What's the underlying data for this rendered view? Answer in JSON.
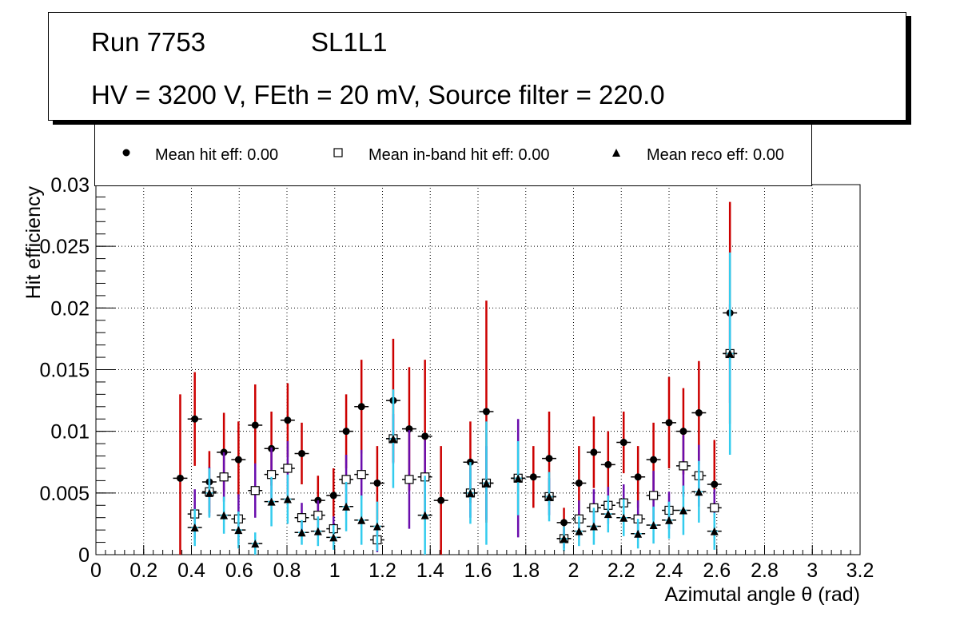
{
  "title": {
    "line1_run": "Run 7753",
    "line1_layer": "SL1L1",
    "line2": "HV = 3200 V, FEth = 20 mV, Source filter = 220.0"
  },
  "legend": {
    "hit": "Mean hit  eff: 0.00",
    "inband": "Mean in-band hit eff: 0.00",
    "reco": "Mean reco eff: 0.00"
  },
  "colors": {
    "hit_err": "#cc0000",
    "inband_err": "#6a0dad",
    "reco_err": "#33ccee"
  },
  "chart_data": {
    "type": "scatter",
    "xlabel": "Azimutal angle θ (rad)",
    "ylabel": "Hit efficiency",
    "xlim": [
      0,
      3.2
    ],
    "ylim": [
      0,
      0.03
    ],
    "x_ticks": [
      0,
      0.2,
      0.4,
      0.6,
      0.8,
      1,
      1.2,
      1.4,
      1.6,
      1.8,
      2,
      2.2,
      2.4,
      2.6,
      2.8,
      3,
      3.2
    ],
    "x_tick_labels": [
      "0",
      "0.2",
      "0.4",
      "0.6",
      "0.8",
      "1",
      "1.2",
      "1.4",
      "1.6",
      "1.8",
      "2",
      "2.2",
      "2.4",
      "2.6",
      "2.8",
      "3",
      "3.2"
    ],
    "y_ticks": [
      0,
      0.005,
      0.01,
      0.015,
      0.02,
      0.025,
      0.03
    ],
    "y_tick_labels": [
      "0",
      "0.005",
      "0.01",
      "0.015",
      "0.02",
      "0.025",
      "0.03"
    ],
    "grid": true,
    "x_halfwidth": 0.03,
    "series": [
      {
        "name": "Mean hit  eff: 0.00",
        "marker": "circle",
        "points": [
          [
            0.353,
            0.0062,
            0.0068
          ],
          [
            0.414,
            0.011,
            0.0038
          ],
          [
            0.475,
            0.0059,
            0.0025
          ],
          [
            0.536,
            0.0083,
            0.0032
          ],
          [
            0.597,
            0.0077,
            0.0031
          ],
          [
            0.667,
            0.0105,
            0.0033
          ],
          [
            0.735,
            0.0086,
            0.003
          ],
          [
            0.803,
            0.0109,
            0.003
          ],
          [
            0.862,
            0.0082,
            0.0025
          ],
          [
            0.93,
            0.0044,
            0.002
          ],
          [
            0.995,
            0.0048,
            0.0022
          ],
          [
            1.048,
            0.01,
            0.003
          ],
          [
            1.112,
            0.012,
            0.0038
          ],
          [
            1.178,
            0.0058,
            0.003
          ],
          [
            1.245,
            0.0125,
            0.005
          ],
          [
            1.312,
            0.0102,
            0.005
          ],
          [
            1.378,
            0.0096,
            0.0062
          ],
          [
            1.445,
            0.0044,
            0.0044
          ],
          [
            1.568,
            0.0075,
            0.0033
          ],
          [
            1.635,
            0.0116,
            0.009
          ],
          [
            1.768,
            0.0062,
            0.003
          ],
          [
            1.832,
            0.0063,
            0.0025
          ],
          [
            1.898,
            0.0078,
            0.0038
          ],
          [
            1.96,
            0.0026,
            0.0012
          ],
          [
            2.023,
            0.0058,
            0.003
          ],
          [
            2.085,
            0.0083,
            0.0029
          ],
          [
            2.145,
            0.0073,
            0.0027
          ],
          [
            2.21,
            0.0091,
            0.0025
          ],
          [
            2.27,
            0.0063,
            0.0025
          ],
          [
            2.335,
            0.0077,
            0.003
          ],
          [
            2.4,
            0.0107,
            0.0037
          ],
          [
            2.46,
            0.01,
            0.0035
          ],
          [
            2.525,
            0.0115,
            0.0042
          ],
          [
            2.59,
            0.0057,
            0.0036
          ],
          [
            2.655,
            0.0196,
            0.009
          ]
        ]
      },
      {
        "name": "Mean in-band hit eff: 0.00",
        "marker": "open-square",
        "points": [
          [
            0.414,
            0.0033,
            0.002
          ],
          [
            0.475,
            0.0051,
            0.002
          ],
          [
            0.536,
            0.0063,
            0.002
          ],
          [
            0.597,
            0.0029,
            0.002
          ],
          [
            0.667,
            0.0052,
            0.0022
          ],
          [
            0.735,
            0.0065,
            0.0022
          ],
          [
            0.803,
            0.007,
            0.0022
          ],
          [
            0.862,
            0.003,
            0.0012
          ],
          [
            0.93,
            0.0032,
            0.0012
          ],
          [
            0.995,
            0.0021,
            0.001
          ],
          [
            1.048,
            0.0061,
            0.002
          ],
          [
            1.112,
            0.0065,
            0.002
          ],
          [
            1.178,
            0.0012,
            0.001
          ],
          [
            1.245,
            0.0094,
            0.002
          ],
          [
            1.312,
            0.0061,
            0.004
          ],
          [
            1.378,
            0.0063,
            0.003
          ],
          [
            1.568,
            0.005,
            0.002
          ],
          [
            1.635,
            0.0058,
            0.003
          ],
          [
            1.768,
            0.0062,
            0.0048
          ],
          [
            1.898,
            0.0047,
            0.0015
          ],
          [
            1.96,
            0.0013,
            0.0008
          ],
          [
            2.023,
            0.0029,
            0.0015
          ],
          [
            2.085,
            0.0038,
            0.0015
          ],
          [
            2.145,
            0.004,
            0.0015
          ],
          [
            2.21,
            0.0042,
            0.0015
          ],
          [
            2.27,
            0.0029,
            0.0015
          ],
          [
            2.335,
            0.0048,
            0.002
          ],
          [
            2.4,
            0.0036,
            0.0015
          ],
          [
            2.46,
            0.0072,
            0.0025
          ],
          [
            2.525,
            0.0064,
            0.0025
          ],
          [
            2.59,
            0.0038,
            0.0015
          ],
          [
            2.655,
            0.0163,
            0.004
          ]
        ]
      },
      {
        "name": "Mean reco eff: 0.00",
        "marker": "triangle",
        "points": [
          [
            0.414,
            0.0022,
            0.0015
          ],
          [
            0.475,
            0.005,
            0.002
          ],
          [
            0.536,
            0.0032,
            0.0015
          ],
          [
            0.597,
            0.002,
            0.0015
          ],
          [
            0.667,
            0.0009,
            0.0009
          ],
          [
            0.735,
            0.0043,
            0.002
          ],
          [
            0.803,
            0.0045,
            0.002
          ],
          [
            0.862,
            0.0018,
            0.001
          ],
          [
            0.93,
            0.0019,
            0.0012
          ],
          [
            0.995,
            0.0014,
            0.001
          ],
          [
            1.048,
            0.0039,
            0.002
          ],
          [
            1.112,
            0.0028,
            0.002
          ],
          [
            1.178,
            0.0023,
            0.002
          ],
          [
            1.245,
            0.0094,
            0.004
          ],
          [
            1.378,
            0.0032,
            0.0032
          ],
          [
            1.568,
            0.005,
            0.0025
          ],
          [
            1.635,
            0.0058,
            0.005
          ],
          [
            1.768,
            0.0062,
            0.003
          ],
          [
            1.898,
            0.0047,
            0.002
          ],
          [
            1.96,
            0.0013,
            0.001
          ],
          [
            2.023,
            0.0019,
            0.0012
          ],
          [
            2.085,
            0.0023,
            0.0015
          ],
          [
            2.145,
            0.0033,
            0.0015
          ],
          [
            2.21,
            0.003,
            0.0015
          ],
          [
            2.27,
            0.0017,
            0.0012
          ],
          [
            2.335,
            0.0024,
            0.0015
          ],
          [
            2.4,
            0.0028,
            0.0015
          ],
          [
            2.46,
            0.0036,
            0.002
          ],
          [
            2.525,
            0.0051,
            0.0025
          ],
          [
            2.59,
            0.0019,
            0.0015
          ],
          [
            2.655,
            0.0163,
            0.0082
          ]
        ]
      }
    ]
  }
}
